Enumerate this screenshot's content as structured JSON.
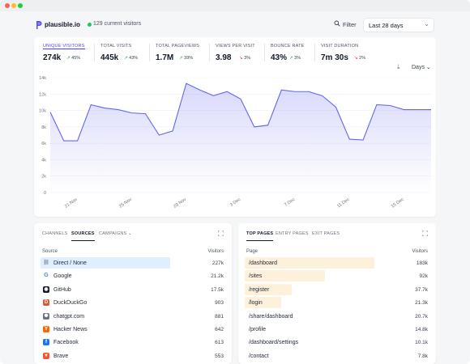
{
  "site": {
    "name": "plausible.io",
    "live_visitors": "129 current visitors"
  },
  "toolbar": {
    "filter_label": "Filter",
    "period_label": "Last 28 days"
  },
  "colors": {
    "accent": "#6366f1",
    "source_bar": "#e0effe",
    "page_bar": "#fdf1dc",
    "up": "#16a34a",
    "down": "#dc2626"
  },
  "metrics": [
    {
      "label": "UNIQUE VISITORS",
      "value": "274k",
      "change": "45%",
      "direction": "up",
      "active": true
    },
    {
      "label": "TOTAL VISITS",
      "value": "445k",
      "change": "43%",
      "direction": "up",
      "active": false
    },
    {
      "label": "TOTAL PAGEVIEWS",
      "value": "1.7M",
      "change": "39%",
      "direction": "up",
      "active": false
    },
    {
      "label": "VIEWS PER VISIT",
      "value": "3.98",
      "change": "3%",
      "direction": "down",
      "active": false
    },
    {
      "label": "BOUNCE RATE",
      "value": "43%",
      "change": "3%",
      "direction": "up",
      "active": false
    },
    {
      "label": "VISIT DURATION",
      "value": "7m 30s",
      "change": "2%",
      "direction": "down",
      "active": false
    }
  ],
  "interval": {
    "label": "Days"
  },
  "chart_data": {
    "type": "area",
    "x": [
      "19 Nov",
      "20 Nov",
      "21 Nov",
      "22 Nov",
      "23 Nov",
      "24 Nov",
      "25 Nov",
      "26 Nov",
      "27 Nov",
      "28 Nov",
      "29 Nov",
      "30 Nov",
      "1 Dec",
      "2 Dec",
      "3 Dec",
      "4 Dec",
      "5 Dec",
      "6 Dec",
      "7 Dec",
      "8 Dec",
      "9 Dec",
      "10 Dec",
      "11 Dec",
      "12 Dec",
      "13 Dec",
      "14 Dec",
      "15 Dec",
      "16 Dec",
      "17 Dec"
    ],
    "series": [
      {
        "values": [
          9800,
          6300,
          6300,
          10700,
          10300,
          10100,
          9700,
          9600,
          7000,
          7500,
          13300,
          12500,
          11800,
          12300,
          11400,
          8000,
          8200,
          12500,
          12300,
          12300,
          11800,
          10400,
          6500,
          6400,
          10700,
          10600,
          10100,
          10100,
          10100
        ]
      }
    ],
    "ylim": [
      0,
      14000
    ],
    "yticks": [
      "0",
      "2k",
      "4k",
      "6k",
      "8k",
      "10k",
      "12k",
      "14k"
    ],
    "xticks": [
      "21 Nov",
      "25 Nov",
      "29 Nov",
      "3 Dec",
      "7 Dec",
      "11 Dec",
      "15 Dec"
    ],
    "grid": true
  },
  "sources": {
    "tabs": [
      "CHANNELS",
      "SOURCES",
      "CAMPAIGNS"
    ],
    "active_tab": "SOURCES",
    "col_label": "Source",
    "col_value": "Visitors",
    "rows": [
      {
        "label": "Direct / None",
        "value": "227k",
        "share": 1.0,
        "icon": "link-icon"
      },
      {
        "label": "Google",
        "value": "21.2k",
        "share": 0.0,
        "icon": "google-icon"
      },
      {
        "label": "GitHub",
        "value": "17.5k",
        "share": 0.0,
        "icon": "github-icon"
      },
      {
        "label": "DuckDuckGo",
        "value": "903",
        "share": 0.0,
        "icon": "duckduckgo-icon"
      },
      {
        "label": "chatgpt.com",
        "value": "881",
        "share": 0.0,
        "icon": "chatgpt-icon"
      },
      {
        "label": "Hacker News",
        "value": "642",
        "share": 0.0,
        "icon": "hackernews-icon"
      },
      {
        "label": "Facebook",
        "value": "613",
        "share": 0.0,
        "icon": "facebook-icon"
      },
      {
        "label": "Brave",
        "value": "553",
        "share": 0.0,
        "icon": "brave-icon"
      }
    ]
  },
  "pages": {
    "tabs": [
      "TOP PAGES",
      "ENTRY PAGES",
      "EXIT PAGES"
    ],
    "active_tab": "TOP PAGES",
    "col_label": "Page",
    "col_value": "Visitors",
    "rows": [
      {
        "label": "/dashboard",
        "value": "183k",
        "share": 1.0
      },
      {
        "label": "/sites",
        "value": "92k",
        "share": 0.62
      },
      {
        "label": "/register",
        "value": "37.7k",
        "share": 0.36
      },
      {
        "label": "/login",
        "value": "21.3k",
        "share": 0.28
      },
      {
        "label": "/share/dashboard",
        "value": "20.7k",
        "share": 0.0
      },
      {
        "label": "/profile",
        "value": "14.8k",
        "share": 0.0
      },
      {
        "label": "/dashboard/settings",
        "value": "10.1k",
        "share": 0.0
      },
      {
        "label": "/contact",
        "value": "7.8k",
        "share": 0.0
      }
    ]
  }
}
